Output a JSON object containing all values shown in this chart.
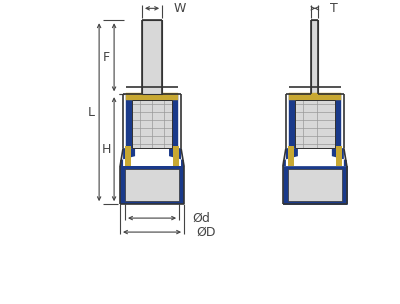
{
  "line_color": "#333333",
  "blue_color": "#1a3a8a",
  "gold_color": "#c8a832",
  "light_gray": "#d8d8d8",
  "mid_gray": "#b0b0b0",
  "white": "#ffffff",
  "dim_color": "#444444",
  "fig_width": 4.0,
  "fig_height": 3.04,
  "dpi": 100,
  "labels": {
    "W": "W",
    "T": "T",
    "F": "F",
    "L": "L",
    "H": "H",
    "Od": "Ød",
    "OD": "ØD"
  }
}
